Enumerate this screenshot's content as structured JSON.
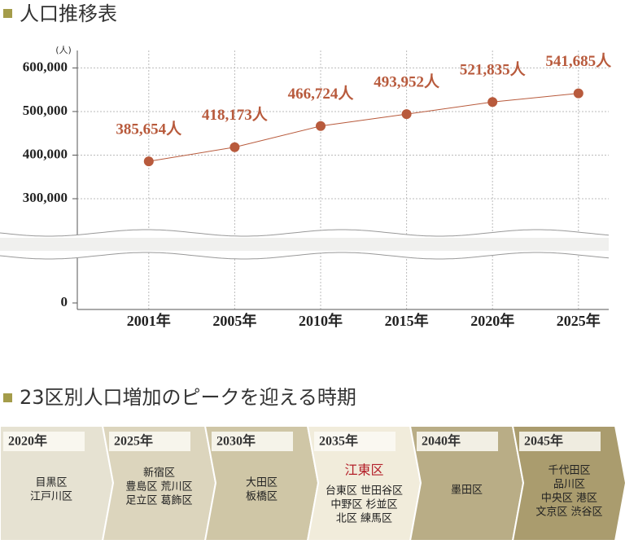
{
  "chart_data": {
    "type": "line",
    "title": "人口推移表",
    "y_unit": "(人)",
    "categories": [
      "2001年",
      "2005年",
      "2010年",
      "2015年",
      "2020年",
      "2025年"
    ],
    "series": [
      {
        "name": "人口",
        "color": "#b85a3c",
        "values": [
          385654,
          418173,
          466724,
          493952,
          521835,
          541685
        ],
        "value_labels": [
          "385,654人",
          "418,173人",
          "466,724人",
          "493,952人",
          "521,835人",
          "541,685人"
        ]
      }
    ],
    "ylim": [
      0,
      640000
    ],
    "yticks": [
      0,
      {
        "value": 300000,
        "label": "300,000"
      },
      {
        "value": 400000,
        "label": "400,000"
      },
      {
        "value": 500000,
        "label": "500,000"
      },
      {
        "value": 600000,
        "label": "600,000"
      }
    ],
    "broken_axis": true,
    "grid": true
  },
  "timeline": {
    "title": "23区別人口増加のピークを迎える時期",
    "stages": [
      {
        "year": "2020年",
        "lines": [
          "目黒区",
          "江戸川区"
        ]
      },
      {
        "year": "2025年",
        "lines": [
          "新宿区",
          "豊島区 荒川区",
          "足立区 葛飾区"
        ]
      },
      {
        "year": "2030年",
        "lines": [
          "大田区",
          "板橋区"
        ]
      },
      {
        "year": "2035年",
        "highlight": "江東区",
        "lines": [
          "台東区 世田谷区",
          "中野区 杉並区",
          "北区 練馬区"
        ]
      },
      {
        "year": "2040年",
        "lines": [
          "墨田区"
        ]
      },
      {
        "year": "2045年",
        "lines": [
          "千代田区",
          "品川区",
          "中央区 港区",
          "文京区 渋谷区"
        ]
      }
    ]
  }
}
